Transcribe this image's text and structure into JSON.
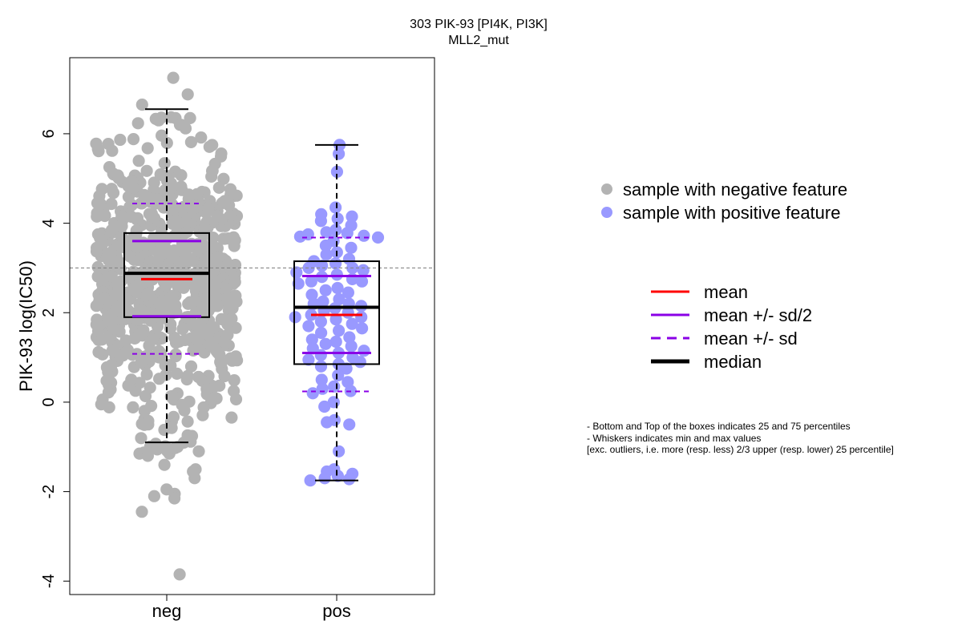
{
  "chart_data": {
    "type": "scatter",
    "title": "303 PIK-93 [PI4K, PI3K]",
    "subtitle": "MLL2_mut",
    "ylabel": "PIK-93 log(IC50)",
    "xlabel": "",
    "categories": [
      "neg",
      "pos"
    ],
    "ylim": [
      -4.3,
      7.7
    ],
    "yticks": [
      -4,
      -2,
      0,
      2,
      4,
      6
    ],
    "reference_line": 3.0,
    "colors": {
      "neg_points": "#b3b3b3",
      "pos_points": "#9999ff",
      "mean": "#ff0000",
      "sd": "#8a00e6",
      "median": "#000000"
    },
    "series": [
      {
        "name": "neg",
        "summary": {
          "min": -0.9,
          "q1": 1.9,
          "median": 2.88,
          "q3": 3.78,
          "max": 6.55,
          "mean": 2.75,
          "mean_minus_half_sd": 1.92,
          "mean_plus_half_sd": 3.6,
          "mean_minus_sd": 1.08,
          "mean_plus_sd": 4.44
        },
        "n": 720,
        "points_outlier": [
          7.25,
          6.88,
          6.65,
          6.35,
          6.2,
          6.3,
          -1.0,
          -1.1,
          -1.15,
          -1.2,
          -1.4,
          -1.5,
          -1.55,
          -1.7,
          -1.95,
          -2.05,
          -2.1,
          -2.15,
          -2.45,
          -3.85
        ]
      },
      {
        "name": "pos",
        "summary": {
          "min": -1.75,
          "q1": 0.85,
          "median": 2.12,
          "q3": 3.15,
          "max": 5.75,
          "mean": 1.95,
          "mean_minus_half_sd": 1.1,
          "mean_plus_half_sd": 2.82,
          "mean_minus_sd": 0.24,
          "mean_plus_sd": 3.68
        },
        "n": 130,
        "points": [
          5.75,
          5.55,
          5.15,
          4.35,
          4.2,
          4.15,
          4.1,
          4.05,
          3.95,
          3.85,
          3.8,
          3.78,
          3.75,
          3.72,
          3.7,
          3.68,
          3.6,
          3.5,
          3.45,
          3.35,
          3.3,
          3.2,
          3.15,
          3.1,
          3.05,
          3.0,
          3.0,
          2.95,
          2.9,
          2.85,
          2.8,
          2.75,
          2.7,
          2.7,
          2.65,
          2.55,
          2.5,
          2.45,
          2.4,
          2.3,
          2.25,
          2.2,
          2.2,
          2.15,
          2.1,
          2.05,
          2.0,
          1.95,
          1.9,
          1.9,
          1.85,
          1.8,
          1.75,
          1.7,
          1.65,
          1.6,
          1.55,
          1.45,
          1.4,
          1.35,
          1.3,
          1.25,
          1.2,
          1.15,
          1.1,
          1.05,
          1.0,
          0.95,
          0.9,
          0.85,
          0.8,
          0.75,
          0.6,
          0.5,
          0.45,
          0.35,
          0.3,
          0.25,
          0.2,
          0.0,
          -0.1,
          -0.4,
          -0.45,
          -0.5,
          -1.1,
          -1.5,
          -1.55,
          -1.6,
          -1.65,
          -1.7,
          -1.72,
          -1.75
        ]
      }
    ],
    "legend": {
      "placement": "right",
      "points": [
        {
          "label": "sample with negative feature",
          "color": "#b3b3b3"
        },
        {
          "label": "sample with positive feature",
          "color": "#9999ff"
        }
      ],
      "lines": [
        {
          "label": "mean",
          "color": "#ff0000",
          "style": "solid"
        },
        {
          "label": "mean +/- sd/2",
          "color": "#8a00e6",
          "style": "solid"
        },
        {
          "label": "mean +/- sd",
          "color": "#8a00e6",
          "style": "dashed"
        },
        {
          "label": "median",
          "color": "#000000",
          "style": "thick"
        }
      ]
    },
    "notes": [
      "- Bottom and Top of the boxes indicates 25 and 75 percentiles",
      "- Whiskers indicates min and max values",
      "[exc. outliers, i.e. more (resp. less) 2/3 upper (resp. lower) 25 percentile]"
    ]
  }
}
